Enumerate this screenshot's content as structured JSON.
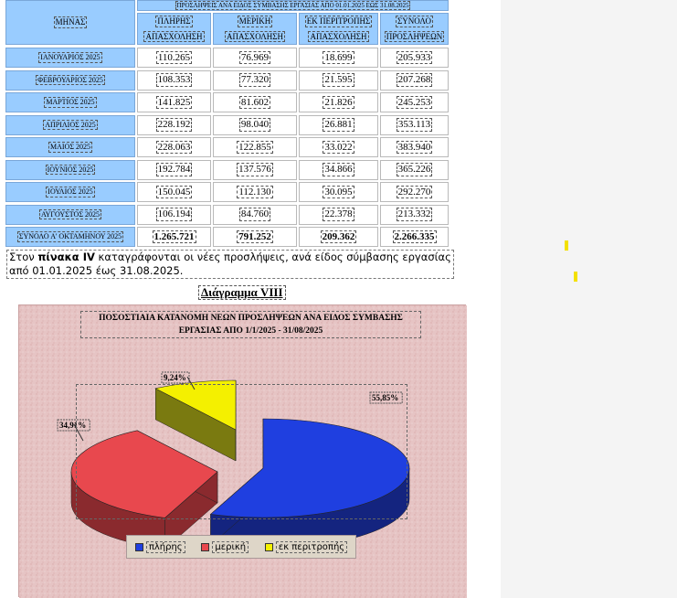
{
  "table": {
    "top_caption": "ΠΡΟΣΛΗΨΕΙΣ ΑΝΑ ΕΙΔΟΣ ΣΥΜΒΑΣΗΣ ΕΡΓΑΣΙΑΣ ΑΠΟ 01.01.2025 ΕΩΣ 31.08.2025",
    "month_header": "ΜΗΝΑΣ",
    "columns": [
      {
        "line1": "ΠΛΗΡΗΣ",
        "line2": "ΑΠΑΣΧΟΛΗΣΗ"
      },
      {
        "line1": "ΜΕΡΙΚΗ",
        "line2": "ΑΠΑΣΧΟΛΗΣΗ"
      },
      {
        "line1": "ΕΚ ΠΕΡΙΤΡΟΠΗΣ",
        "line2": "ΑΠΑΣΧΟΛΗΣΗ"
      },
      {
        "line1": "ΣΥΝΟΛΟ",
        "line2": "ΠΡΟΣΛΗΨΕΩΝ"
      }
    ],
    "rows": [
      {
        "month": "ΙΑΝΟΥΑΡΙΟΣ 2025",
        "values": [
          "110.265",
          "76.969",
          "18.699",
          "205.933"
        ]
      },
      {
        "month": "ΦΕΒΡΟΥΑΡΙΟΣ 2025",
        "values": [
          "108.353",
          "77.320",
          "21.595",
          "207.268"
        ]
      },
      {
        "month": "ΜΑΡΤΙΟΣ 2025",
        "values": [
          "141.825",
          "81.602",
          "21.826",
          "245.253"
        ]
      },
      {
        "month": "ΑΠΡΙΛΙΟΣ 2025",
        "values": [
          "228.192",
          "98.040",
          "26.881",
          "353.113"
        ]
      },
      {
        "month": "ΜΑΙΟΣ 2025",
        "values": [
          "228.063",
          "122.855",
          "33.022",
          "383.940"
        ]
      },
      {
        "month": "ΙΟΥΝΙΟΣ 2025",
        "values": [
          "192.784",
          "137.576",
          "34.866",
          "365.226"
        ]
      },
      {
        "month": "ΙΟΥΛΙΟΣ 2025",
        "values": [
          "150.045",
          "112.130",
          "30.095",
          "292.270"
        ]
      },
      {
        "month": "ΑΥΓΟΥΣΤΟΣ 2025",
        "values": [
          "106.194",
          "84.760",
          "22.378",
          "213.332"
        ]
      }
    ],
    "total_row": {
      "month": "ΣΥΝΟΛΟ Α' ΟΚΤΑΜΗΝΟΥ 2025",
      "values": [
        "1.265.721",
        "791.252",
        "209.362",
        "2.266.335"
      ]
    }
  },
  "paragraph": {
    "before": "Στον ",
    "bold": "πίνακα IV",
    "after": " καταγράφονται οι νέες προσλήψεις, ανά είδος σύμβασης εργασίας από 01.01.2025 έως 31.08.2025."
  },
  "diagram_label": "Διάγραμμα VIII",
  "chart_data": {
    "type": "pie",
    "title_line1": "ΠΟΣΟΣΤΙΑΙΑ ΚΑΤΑΝΟΜΗ ΝΕΩΝ ΠΡΟΣΛΗΨΕΩΝ ΑΝΑ ΕΙΔΟΣ ΣΥΜΒΑΣΗΣ",
    "title_line2": "ΕΡΓΑΣΙΑΣ ΑΠΟ 1/1/2025 - 31/08/2025",
    "labels": [
      "πλήρης",
      "μερική",
      "εκ περιτροπής"
    ],
    "values": [
      55.85,
      34.91,
      9.24
    ],
    "value_labels": [
      "55,85%",
      "34,91%",
      "9,24%"
    ],
    "colors": [
      "#1f3fe0",
      "#e8484e",
      "#f4f000"
    ],
    "style": "3d-exploded",
    "legend_position": "bottom"
  }
}
